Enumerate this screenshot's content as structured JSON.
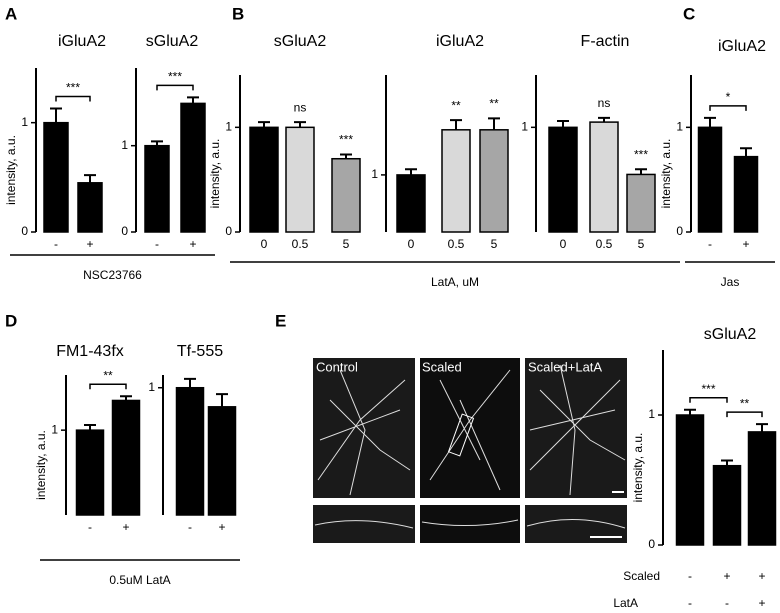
{
  "chart_data": [
    {
      "type": "bar",
      "panel_label": "A",
      "title": "iGluA2",
      "ylabel": "intensity, a.u.",
      "group_label": "NSC23766",
      "categories": [
        "-",
        "+"
      ],
      "values": [
        1.0,
        0.45
      ],
      "errors": [
        0.13,
        0.07
      ],
      "color": "#000000",
      "ylim": [
        0,
        1.5
      ],
      "yticks": [
        0,
        1
      ],
      "brackets": [
        {
          "label": "***",
          "pair": [
            0,
            1
          ]
        }
      ]
    },
    {
      "type": "bar",
      "title": "sGluA2",
      "categories": [
        "-",
        "+"
      ],
      "values": [
        1.0,
        1.49
      ],
      "errors": [
        0.05,
        0.07
      ],
      "color": "#000000",
      "ylim": [
        0,
        1.9
      ],
      "yticks": [
        0,
        1
      ],
      "brackets": [
        {
          "label": "***",
          "pair": [
            0,
            1
          ]
        }
      ]
    },
    {
      "type": "bar",
      "panel_label": "B",
      "title": "sGluA2",
      "ylabel": "intensity, a.u.",
      "group_label": "LatA, uM",
      "categories": [
        "0",
        "0.5",
        "5"
      ],
      "values": [
        1.0,
        1.0,
        0.7
      ],
      "errors": [
        0.05,
        0.05,
        0.04
      ],
      "colors": [
        "#000000",
        "#d9d9d9",
        "#a6a6a6"
      ],
      "ylim": [
        0,
        1.5
      ],
      "yticks": [
        0,
        1
      ],
      "annotations": [
        null,
        "ns",
        "***"
      ]
    },
    {
      "type": "bar",
      "title": "iGluA2",
      "categories": [
        "0",
        "0.5",
        "5"
      ],
      "values": [
        1.0,
        1.79,
        1.79
      ],
      "errors": [
        0.1,
        0.17,
        0.2
      ],
      "colors": [
        "#000000",
        "#d9d9d9",
        "#a6a6a6"
      ],
      "ylim": [
        0,
        2.75
      ],
      "yticks": [
        1
      ],
      "annotations": [
        null,
        "**",
        "**"
      ]
    },
    {
      "type": "bar",
      "title": "F-actin",
      "categories": [
        "0",
        "0.5",
        "5"
      ],
      "values": [
        1.0,
        1.05,
        0.55
      ],
      "errors": [
        0.06,
        0.04,
        0.05
      ],
      "colors": [
        "#000000",
        "#d9d9d9",
        "#a6a6a6"
      ],
      "ylim": [
        0,
        1.5
      ],
      "yticks": [
        1
      ],
      "annotations": [
        null,
        "ns",
        "***"
      ]
    },
    {
      "type": "bar",
      "panel_label": "C",
      "title": "iGluA2",
      "ylabel": "intensity, a.u.",
      "group_label": "Jas",
      "categories": [
        "-",
        "+"
      ],
      "values": [
        1.0,
        0.72
      ],
      "errors": [
        0.09,
        0.08
      ],
      "color": "#000000",
      "ylim": [
        0,
        1.5
      ],
      "yticks": [
        0,
        1
      ],
      "brackets": [
        {
          "label": "*",
          "pair": [
            0,
            1
          ]
        }
      ]
    },
    {
      "type": "bar",
      "panel_label": "D",
      "title": "FM1-43fx",
      "ylabel": "intensity, a.u.",
      "group_label": "0.5uM LatA",
      "categories": [
        "-",
        "+"
      ],
      "values": [
        1.0,
        1.35
      ],
      "errors": [
        0.06,
        0.05
      ],
      "color": "#000000",
      "ylim": [
        0,
        1.65
      ],
      "yticks": [
        1
      ],
      "brackets": [
        {
          "label": "**",
          "pair": [
            0,
            1
          ]
        }
      ]
    },
    {
      "type": "bar",
      "title": "Tf-555",
      "categories": [
        "-",
        "+"
      ],
      "values": [
        1.0,
        0.85
      ],
      "errors": [
        0.07,
        0.1
      ],
      "color": "#000000",
      "ylim": [
        0,
        1.1
      ],
      "yticks": [
        1
      ]
    },
    {
      "type": "bar",
      "panel_label": "E",
      "title": "sGluA2",
      "ylabel": "intensity, a.u.",
      "category_rows": [
        {
          "name": "Scaled",
          "labels": [
            "-",
            "+",
            "+"
          ]
        },
        {
          "name": "LatA",
          "labels": [
            "-",
            "-",
            "+"
          ]
        }
      ],
      "values": [
        1.0,
        0.61,
        0.87
      ],
      "errors": [
        0.04,
        0.04,
        0.06
      ],
      "color": "#000000",
      "ylim": [
        0,
        1.5
      ],
      "yticks": [
        0,
        1
      ],
      "brackets": [
        {
          "label": "***",
          "pair": [
            0,
            1
          ]
        },
        {
          "label": "**",
          "pair": [
            1,
            2
          ]
        }
      ],
      "images": [
        "Control",
        "Scaled",
        "Scaled+LatA"
      ]
    }
  ]
}
